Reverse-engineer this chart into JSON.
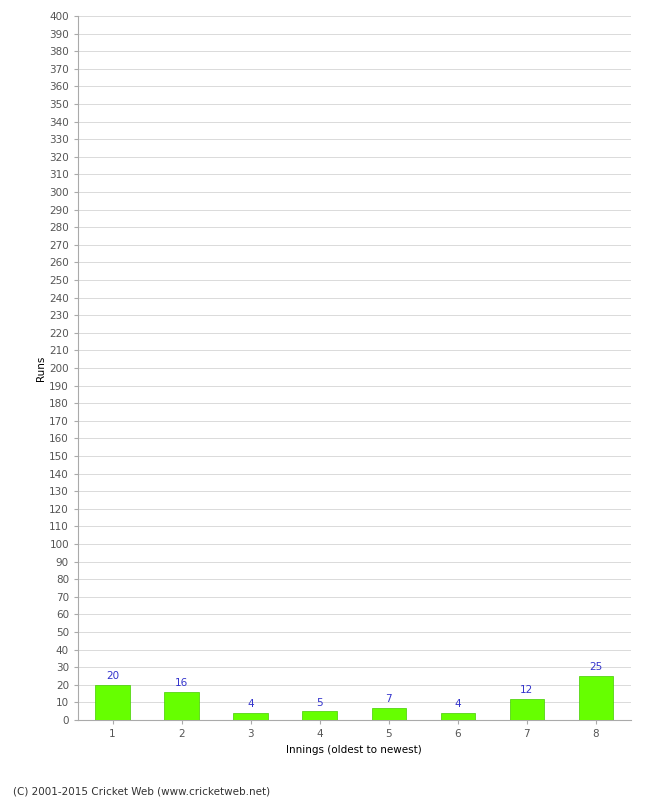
{
  "categories": [
    "1",
    "2",
    "3",
    "4",
    "5",
    "6",
    "7",
    "8"
  ],
  "values": [
    20,
    16,
    4,
    5,
    7,
    4,
    12,
    25
  ],
  "bar_color": "#66ff00",
  "bar_edge_color": "#44cc00",
  "label_color": "#3333cc",
  "xlabel": "Innings (oldest to newest)",
  "ylabel": "Runs",
  "ylim": [
    0,
    400
  ],
  "grid_color": "#cccccc",
  "bg_color": "#ffffff",
  "footer": "(C) 2001-2015 Cricket Web (www.cricketweb.net)",
  "label_fontsize": 7.5,
  "axis_fontsize": 7.5,
  "ylabel_fontsize": 7.5,
  "footer_fontsize": 7.5,
  "tick_color": "#555555",
  "spine_color": "#aaaaaa"
}
